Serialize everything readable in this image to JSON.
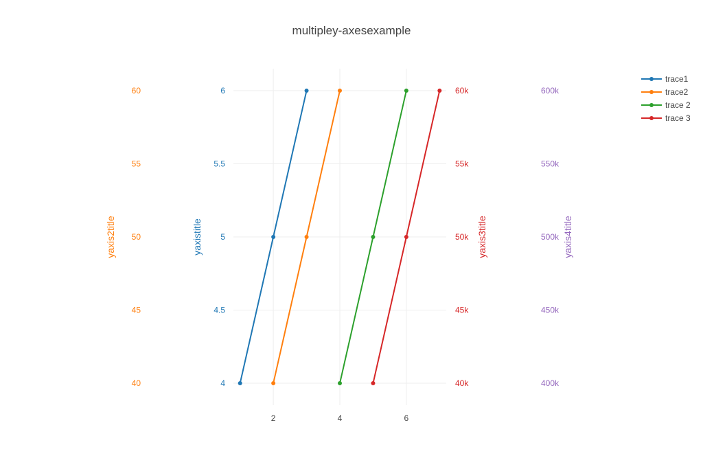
{
  "chart_data": {
    "type": "line",
    "title": "multipley-axesexample",
    "x_axis": {
      "range": [
        0.8,
        7.2
      ],
      "ticks": [
        2,
        4,
        6
      ],
      "tick_labels": [
        "2",
        "4",
        "6"
      ],
      "grid": true
    },
    "y_axes": [
      {
        "id": "y1",
        "title": "yaxistitle",
        "color": "#1f77b4",
        "range": [
          3.85,
          6.15
        ],
        "ticks": [
          4,
          4.5,
          5,
          5.5,
          6
        ],
        "tick_labels": [
          "4",
          "4.5",
          "5",
          "5.5",
          "6"
        ],
        "grid": true
      },
      {
        "id": "y2",
        "title": "yaxis2title",
        "color": "#ff7f0e",
        "range": [
          38.5,
          61.5
        ],
        "ticks": [
          40,
          45,
          50,
          55,
          60
        ],
        "tick_labels": [
          "40",
          "45",
          "50",
          "55",
          "60"
        ],
        "grid": false
      },
      {
        "id": "y3",
        "title": "yaxis3title",
        "color": "#d62728",
        "range": [
          38500,
          61500
        ],
        "ticks": [
          40000,
          45000,
          50000,
          55000,
          60000
        ],
        "tick_labels": [
          "40k",
          "45k",
          "50k",
          "55k",
          "60k"
        ],
        "grid": false
      },
      {
        "id": "y4",
        "title": "yaxis4title",
        "color": "#9467bd",
        "range": [
          385000,
          615000
        ],
        "ticks": [
          400000,
          450000,
          500000,
          550000,
          600000
        ],
        "tick_labels": [
          "400k",
          "450k",
          "500k",
          "550k",
          "600k"
        ],
        "grid": false
      }
    ],
    "series": [
      {
        "name": "trace1",
        "color": "#1f77b4",
        "yaxis": "y1",
        "x": [
          1,
          2,
          3
        ],
        "y": [
          4,
          5,
          6
        ]
      },
      {
        "name": "trace2",
        "color": "#ff7f0e",
        "yaxis": "y2",
        "x": [
          2,
          3,
          4
        ],
        "y": [
          40,
          50,
          60
        ]
      },
      {
        "name": "trace 2",
        "color": "#2ca02c",
        "yaxis": "y3",
        "x": [
          4,
          5,
          6
        ],
        "y": [
          40000,
          50000,
          60000
        ]
      },
      {
        "name": "trace 3",
        "color": "#d62728",
        "yaxis": "y4",
        "x": [
          5,
          6,
          7
        ],
        "y": [
          400000,
          500000,
          600000
        ]
      }
    ],
    "legend": {
      "position": "top-right"
    }
  }
}
